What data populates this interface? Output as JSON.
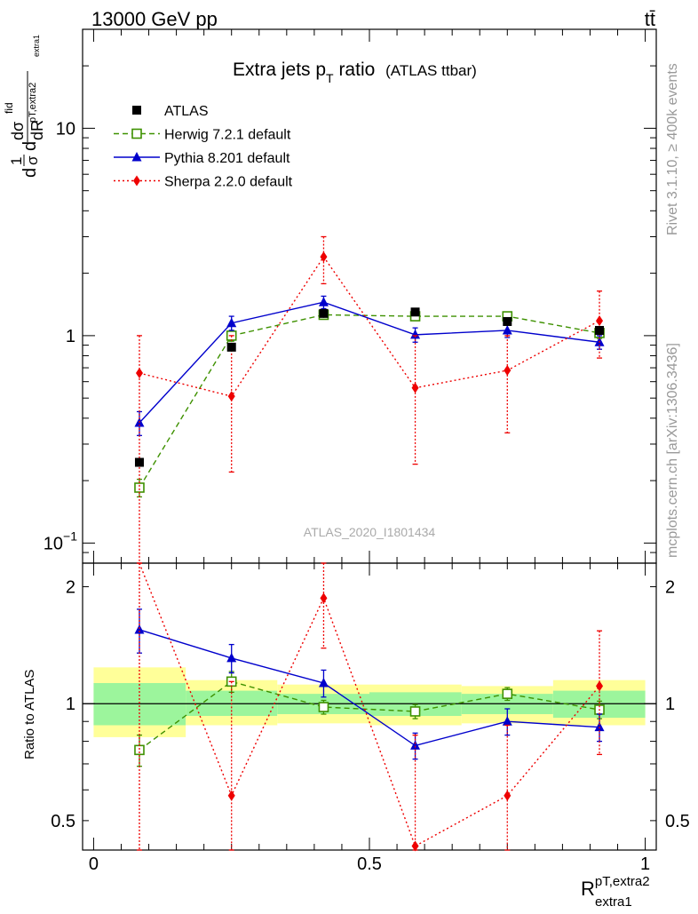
{
  "header": {
    "energy": "13000 GeV pp",
    "process": "tt̄"
  },
  "chart_data": [
    {
      "type": "line",
      "title": "Extra jets p",
      "title_sub": "T",
      "title_suffix": " ratio",
      "title_note": "(ATLAS ttbar)",
      "ylabel_parts": [
        "d",
        "1",
        "σ",
        "d",
        "dσ",
        "fid",
        "dR",
        "pT,extra2",
        "extra1"
      ],
      "y_scale": "log",
      "ylim": [
        0.08,
        30
      ],
      "y_ticks": [
        {
          "v": 0.1,
          "label": "10",
          "sup": "−1"
        },
        {
          "v": 1,
          "label": "1",
          "sup": ""
        },
        {
          "v": 10,
          "label": "10",
          "sup": ""
        }
      ],
      "xlim": [
        -0.02,
        1.02
      ],
      "watermark": "ATLAS_2020_I1801434",
      "side_label_top": "Rivet 3.1.10, ≥ 400k events",
      "side_label_bottom": "mcplots.cern.ch [arXiv:1306.3436]",
      "legend_position": "top-left",
      "series": [
        {
          "name": "ATLAS",
          "color": "#000000",
          "marker": "square-filled",
          "style": "none",
          "x": [
            0.083,
            0.25,
            0.417,
            0.583,
            0.75,
            0.917
          ],
          "y": [
            0.245,
            0.88,
            1.28,
            1.3,
            1.17,
            1.06
          ],
          "err": [
            0.01,
            0.04,
            0.06,
            0.05,
            0.05,
            0.05
          ]
        },
        {
          "name": "Herwig 7.2.1 default",
          "color": "#3e9100",
          "marker": "square-open",
          "style": "dashed",
          "x": [
            0.083,
            0.25,
            0.417,
            0.583,
            0.75,
            0.917
          ],
          "y": [
            0.185,
            1.0,
            1.26,
            1.24,
            1.24,
            1.03
          ],
          "err": [
            0.018,
            0.06,
            0.06,
            0.05,
            0.05,
            0.06
          ]
        },
        {
          "name": "Pythia 8.201 default",
          "color": "#0000cc",
          "marker": "triangle",
          "style": "solid",
          "x": [
            0.083,
            0.25,
            0.417,
            0.583,
            0.75,
            0.917
          ],
          "y": [
            0.38,
            1.15,
            1.45,
            1.01,
            1.06,
            0.93
          ],
          "err": [
            0.05,
            0.09,
            0.1,
            0.08,
            0.08,
            0.07
          ]
        },
        {
          "name": "Sherpa 2.2.0 default",
          "color": "#ee0000",
          "marker": "diamond",
          "style": "dotted",
          "x": [
            0.083,
            0.25,
            0.417,
            0.583,
            0.75,
            0.917
          ],
          "y": [
            0.66,
            0.51,
            2.4,
            0.56,
            0.68,
            1.18
          ],
          "err_lo": [
            0.66,
            0.29,
            0.62,
            0.32,
            0.34,
            0.4
          ],
          "err_hi": [
            0.34,
            0.49,
            0.6,
            0.44,
            0.32,
            0.46
          ]
        }
      ]
    },
    {
      "type": "line",
      "ylabel": "Ratio to ATLAS",
      "y_scale": "log",
      "ylim": [
        0.42,
        2.3
      ],
      "y_ticks": [
        {
          "v": 0.5,
          "label": "0.5"
        },
        {
          "v": 1,
          "label": "1"
        },
        {
          "v": 2,
          "label": "2"
        }
      ],
      "xlim": [
        -0.02,
        1.02
      ],
      "x_ticks": [
        {
          "v": 0,
          "label": "0"
        },
        {
          "v": 0.5,
          "label": "0.5"
        },
        {
          "v": 1,
          "label": "1"
        }
      ],
      "xlabel": "R",
      "xlabel_sup": "pT,extra2",
      "xlabel_sub": "extra1",
      "bands": {
        "edges": [
          0,
          0.167,
          0.333,
          0.5,
          0.667,
          0.833,
          1.0
        ],
        "inner": [
          [
            0.88,
            1.13
          ],
          [
            0.93,
            1.08
          ],
          [
            0.94,
            1.06
          ],
          [
            0.93,
            1.07
          ],
          [
            0.94,
            1.06
          ],
          [
            0.92,
            1.08
          ]
        ],
        "outer": [
          [
            0.82,
            1.24
          ],
          [
            0.88,
            1.15
          ],
          [
            0.89,
            1.12
          ],
          [
            0.88,
            1.12
          ],
          [
            0.89,
            1.11
          ],
          [
            0.88,
            1.15
          ]
        ],
        "inner_color": "#9cf59c",
        "outer_color": "#ffff99"
      },
      "series": [
        {
          "name": "Herwig 7.2.1 default",
          "color": "#3e9100",
          "marker": "square-open",
          "style": "dashed",
          "x": [
            0.083,
            0.25,
            0.417,
            0.583,
            0.75,
            0.917
          ],
          "y": [
            0.76,
            1.14,
            0.98,
            0.955,
            1.06,
            0.965
          ],
          "err": [
            0.07,
            0.07,
            0.04,
            0.04,
            0.04,
            0.05
          ]
        },
        {
          "name": "Pythia 8.201 default",
          "color": "#0000cc",
          "marker": "triangle",
          "style": "solid",
          "x": [
            0.083,
            0.25,
            0.417,
            0.583,
            0.75,
            0.917
          ],
          "y": [
            1.55,
            1.31,
            1.13,
            0.78,
            0.9,
            0.87
          ],
          "err": [
            0.2,
            0.11,
            0.09,
            0.06,
            0.07,
            0.07
          ]
        },
        {
          "name": "Sherpa 2.2.0 default",
          "color": "#ee0000",
          "marker": "diamond",
          "style": "dotted",
          "x": [
            0.083,
            0.25,
            0.417,
            0.583,
            0.75,
            0.917
          ],
          "y": [
            2.7,
            0.58,
            1.87,
            0.43,
            0.58,
            1.11
          ],
          "err_lo": [
            2.7,
            0.58,
            0.48,
            0.43,
            0.58,
            0.37
          ],
          "err_hi": [
            1.3,
            0.56,
            0.48,
            0.4,
            0.3,
            0.43
          ]
        }
      ]
    }
  ]
}
